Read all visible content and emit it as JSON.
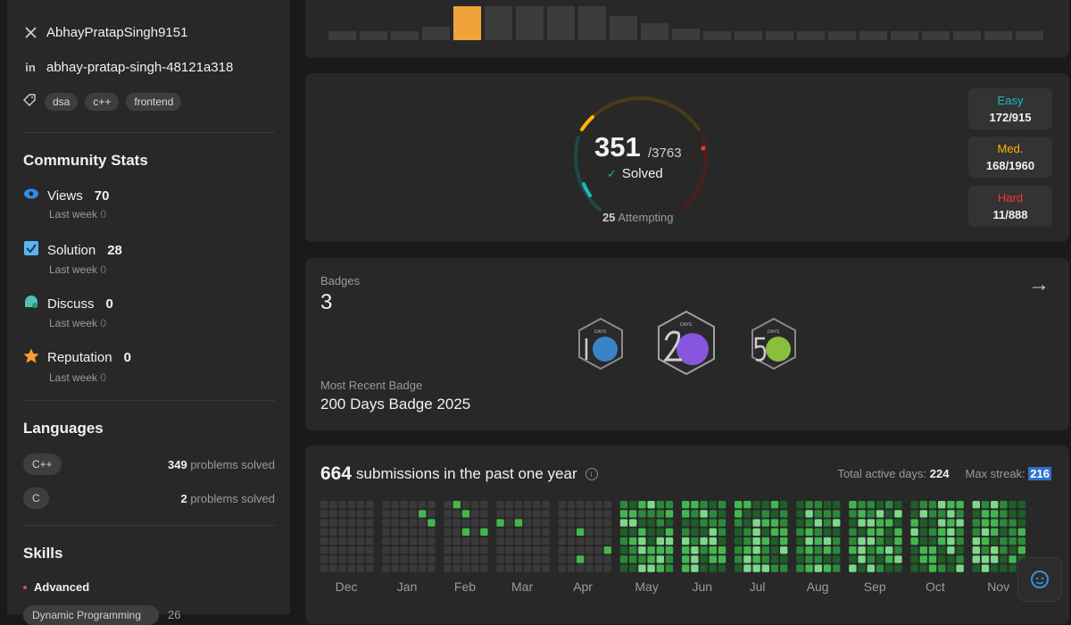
{
  "sidebar": {
    "x_handle": "AbhayPratapSingh9151",
    "linkedin_handle": "abhay-pratap-singh-48121a318",
    "tags": [
      "dsa",
      "c++",
      "frontend"
    ],
    "community_title": "Community Stats",
    "stats": [
      {
        "label": "Views",
        "value": "70",
        "sub_label": "Last week",
        "sub_value": "0",
        "icon": "eye-icon",
        "color": "#2f8cf0"
      },
      {
        "label": "Solution",
        "value": "28",
        "sub_label": "Last week",
        "sub_value": "0",
        "icon": "checkbox-icon",
        "color": "#59b6f0"
      },
      {
        "label": "Discuss",
        "value": "0",
        "sub_label": "Last week",
        "sub_value": "0",
        "icon": "chat-bubble-icon",
        "color": "#4ec2b0"
      },
      {
        "label": "Reputation",
        "value": "0",
        "sub_label": "Last week",
        "sub_value": "0",
        "icon": "star-icon",
        "color": "#f7a12d"
      }
    ],
    "languages_title": "Languages",
    "languages": [
      {
        "name": "C++",
        "count": "349",
        "suffix": " problems solved"
      },
      {
        "name": "C",
        "count": "2",
        "suffix": " problems solved"
      }
    ],
    "skills_title": "Skills",
    "skills_level": "Advanced",
    "skill_pill": "Dynamic Programming",
    "skill_count": "26"
  },
  "bar_heights": [
    0.25,
    0.25,
    0.25,
    0.4,
    1.0,
    1.0,
    1.0,
    1.0,
    1.0,
    0.7,
    0.5,
    0.35,
    0.25,
    0.25,
    0.25,
    0.25,
    0.25,
    0.25,
    0.25,
    0.25,
    0.25,
    0.25,
    0.25
  ],
  "highlight_bar": 4,
  "progress": {
    "solved": "351",
    "total": "/3763",
    "solved_label": "Solved",
    "attempting_count": "25",
    "attempting_label": "Attempting",
    "difficulties": [
      {
        "name": "Easy",
        "value": "172/915",
        "color": "#1cbaba"
      },
      {
        "name": "Med.",
        "value": "168/1960",
        "color": "#ffb700"
      },
      {
        "name": "Hard",
        "value": "11/888",
        "color": "#f63737"
      }
    ]
  },
  "badges": {
    "label": "Badges",
    "count": "3",
    "recent_label": "Most Recent Badge",
    "recent_name": "200 Days Badge 2025",
    "badge_caption": "DAYS"
  },
  "submissions": {
    "count": "664",
    "text": "submissions in the past one year",
    "active_days_label": "Total active days:",
    "active_days": "224",
    "max_streak_label": "Max streak:",
    "max_streak": "216",
    "months": [
      "Dec",
      "Jan",
      "Feb",
      "Mar",
      "Apr",
      "May",
      "Jun",
      "Jul",
      "Aug",
      "Sep",
      "Oct",
      "Nov"
    ]
  }
}
